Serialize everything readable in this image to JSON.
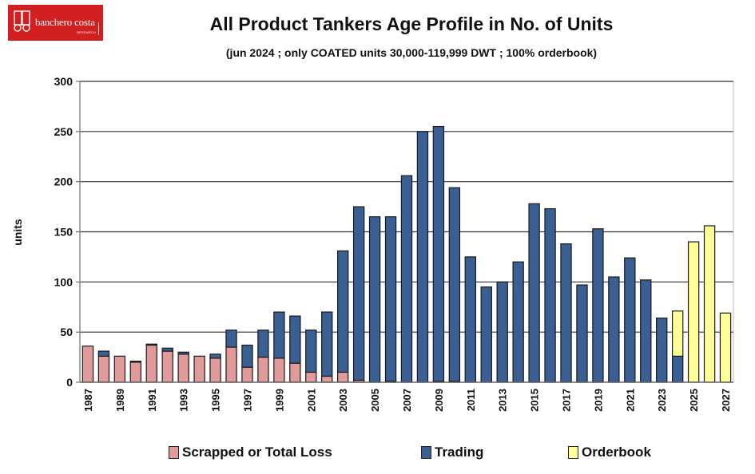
{
  "logo": {
    "brand": "banchero costa",
    "sub": "RESEARCH",
    "color": "#d21f1f"
  },
  "chart_data": {
    "type": "bar",
    "stacked": true,
    "title": "All Product Tankers Age Profile in No. of Units",
    "subtitle": "(jun 2024 ; only COATED units 30,000-119,999 DWT ; 100% orderbook)",
    "xlabel": "",
    "ylabel": "units",
    "ylim": [
      0,
      300
    ],
    "yticks": [
      0,
      50,
      100,
      150,
      200,
      250,
      300
    ],
    "grid": true,
    "legend_position": "bottom",
    "categories": [
      "1987",
      "1988",
      "1989",
      "1990",
      "1991",
      "1992",
      "1993",
      "1994",
      "1995",
      "1996",
      "1997",
      "1998",
      "1999",
      "2000",
      "2001",
      "2002",
      "2003",
      "2004",
      "2005",
      "2006",
      "2007",
      "2008",
      "2009",
      "2010",
      "2011",
      "2012",
      "2013",
      "2014",
      "2015",
      "2016",
      "2017",
      "2018",
      "2019",
      "2020",
      "2021",
      "2022",
      "2023",
      "2024",
      "2025",
      "2026",
      "2027"
    ],
    "xtick_labels": [
      "1987",
      "1989",
      "1991",
      "1993",
      "1995",
      "1997",
      "1999",
      "2001",
      "2003",
      "2005",
      "2007",
      "2009",
      "2011",
      "2013",
      "2015",
      "2017",
      "2019",
      "2021",
      "2023",
      "2025",
      "2027"
    ],
    "series": [
      {
        "name": "Scrapped or Total Loss",
        "color": "#e09a9a",
        "values": [
          36,
          26,
          26,
          20,
          37,
          31,
          28,
          26,
          24,
          35,
          15,
          25,
          24,
          19,
          10,
          6,
          10,
          2,
          0,
          1,
          0,
          0,
          1,
          1,
          0,
          0,
          0,
          0,
          0,
          0,
          0,
          0,
          0,
          0,
          0,
          0,
          0,
          0,
          0,
          0,
          0
        ]
      },
      {
        "name": "Trading",
        "color": "#3a5f93",
        "values": [
          0,
          5,
          0,
          1,
          1,
          3,
          2,
          0,
          4,
          17,
          22,
          27,
          46,
          47,
          42,
          64,
          121,
          173,
          165,
          164,
          206,
          250,
          254,
          193,
          125,
          95,
          100,
          120,
          178,
          173,
          138,
          97,
          153,
          105,
          124,
          102,
          64,
          26,
          0,
          0,
          0
        ]
      },
      {
        "name": "Orderbook",
        "color": "#ffff99",
        "values": [
          0,
          0,
          0,
          0,
          0,
          0,
          0,
          0,
          0,
          0,
          0,
          0,
          0,
          0,
          0,
          0,
          0,
          0,
          0,
          0,
          0,
          0,
          0,
          0,
          0,
          0,
          0,
          0,
          0,
          0,
          0,
          0,
          0,
          0,
          0,
          0,
          0,
          45,
          140,
          156,
          69
        ]
      }
    ]
  }
}
